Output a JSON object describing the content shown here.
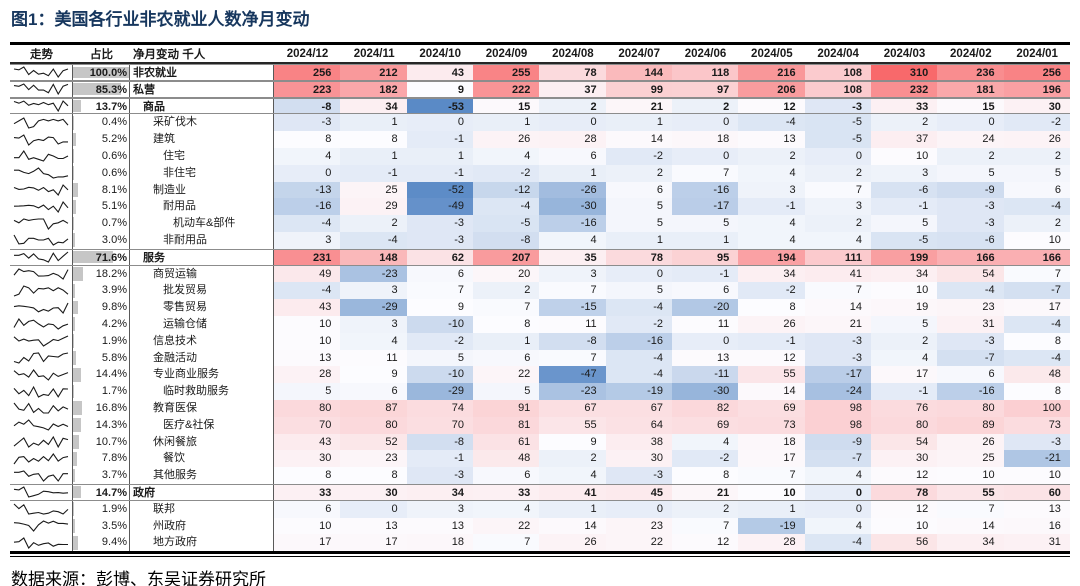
{
  "chart_data": {
    "type": "heatmap",
    "title": "图1：美国各行业非农就业人数净月变动",
    "source": "数据来源：彭博、东吴证券研究所",
    "title_color": "#17375e",
    "columns": {
      "trend": "走势",
      "share": "占比",
      "label": "净月变动 千人"
    },
    "months": [
      "2024/12",
      "2024/11",
      "2024/10",
      "2024/09",
      "2024/08",
      "2024/07",
      "2024/06",
      "2024/05",
      "2024/04",
      "2024/03",
      "2024/02",
      "2024/01"
    ],
    "color_scale": {
      "min": -53,
      "mid": 8,
      "max": 310,
      "min_color": "#5A8AC6",
      "mid_color": "#FCFCFF",
      "max_color": "#F8696B"
    },
    "share_bar_color": "#c6c6c6",
    "rows": [
      {
        "label": "非农就业",
        "share": "100.0%",
        "share_pct": 100.0,
        "indent": 0,
        "bold": true,
        "values": [
          256,
          212,
          43,
          255,
          78,
          144,
          118,
          216,
          108,
          310,
          236,
          256
        ]
      },
      {
        "label": "私营",
        "share": "85.3%",
        "share_pct": 85.3,
        "indent": 0,
        "bold": true,
        "values": [
          223,
          182,
          9,
          222,
          37,
          99,
          97,
          206,
          108,
          232,
          181,
          196
        ]
      },
      {
        "label": "商品",
        "share": "13.7%",
        "share_pct": 13.7,
        "indent": 1,
        "bold": true,
        "values": [
          -8,
          34,
          -53,
          15,
          2,
          21,
          2,
          12,
          -3,
          33,
          15,
          30
        ]
      },
      {
        "label": "采矿伐木",
        "share": "0.4%",
        "share_pct": 0.4,
        "indent": 2,
        "bold": false,
        "values": [
          -3,
          1,
          0,
          1,
          0,
          1,
          0,
          -4,
          -5,
          2,
          0,
          -2
        ]
      },
      {
        "label": "建筑",
        "share": "5.2%",
        "share_pct": 5.2,
        "indent": 2,
        "bold": false,
        "values": [
          8,
          8,
          -1,
          26,
          28,
          14,
          18,
          13,
          -5,
          37,
          24,
          26
        ]
      },
      {
        "label": "住宅",
        "share": "0.6%",
        "share_pct": 0.6,
        "indent": 3,
        "bold": false,
        "values": [
          4,
          1,
          1,
          4,
          6,
          -2,
          0,
          2,
          0,
          10,
          2,
          2
        ]
      },
      {
        "label": "非住宅",
        "share": "0.6%",
        "share_pct": 0.6,
        "indent": 3,
        "bold": false,
        "values": [
          0,
          -1,
          -1,
          -2,
          1,
          2,
          7,
          4,
          2,
          3,
          5,
          5
        ]
      },
      {
        "label": "制造业",
        "share": "8.1%",
        "share_pct": 8.1,
        "indent": 2,
        "bold": false,
        "values": [
          -13,
          25,
          -52,
          -12,
          -26,
          6,
          -16,
          3,
          7,
          -6,
          -9,
          6
        ]
      },
      {
        "label": "耐用品",
        "share": "5.1%",
        "share_pct": 5.1,
        "indent": 3,
        "bold": false,
        "values": [
          -16,
          29,
          -49,
          -4,
          -30,
          5,
          -17,
          -1,
          3,
          -1,
          -3,
          -4
        ]
      },
      {
        "label": "机动车&部件",
        "share": "0.7%",
        "share_pct": 0.7,
        "indent": 4,
        "bold": false,
        "values": [
          -4,
          2,
          -3,
          -5,
          -16,
          5,
          5,
          4,
          2,
          5,
          -3,
          2
        ]
      },
      {
        "label": "非耐用品",
        "share": "3.0%",
        "share_pct": 3.0,
        "indent": 3,
        "bold": false,
        "values": [
          3,
          -4,
          -3,
          -8,
          4,
          1,
          1,
          4,
          4,
          -5,
          -6,
          10
        ]
      },
      {
        "label": "服务",
        "share": "71.6%",
        "share_pct": 71.6,
        "indent": 1,
        "bold": true,
        "values": [
          231,
          148,
          62,
          207,
          35,
          78,
          95,
          194,
          111,
          199,
          166,
          166
        ]
      },
      {
        "label": "商贸运输",
        "share": "18.2%",
        "share_pct": 18.2,
        "indent": 2,
        "bold": false,
        "values": [
          49,
          -23,
          6,
          20,
          3,
          0,
          -1,
          34,
          41,
          34,
          54,
          7
        ]
      },
      {
        "label": "批发贸易",
        "share": "3.9%",
        "share_pct": 3.9,
        "indent": 3,
        "bold": false,
        "values": [
          -4,
          3,
          7,
          2,
          7,
          5,
          6,
          -2,
          7,
          10,
          -4,
          -7
        ]
      },
      {
        "label": "零售贸易",
        "share": "9.8%",
        "share_pct": 9.8,
        "indent": 3,
        "bold": false,
        "values": [
          43,
          -29,
          9,
          7,
          -15,
          -4,
          -20,
          8,
          14,
          19,
          23,
          17
        ]
      },
      {
        "label": "运输仓储",
        "share": "4.2%",
        "share_pct": 4.2,
        "indent": 3,
        "bold": false,
        "values": [
          10,
          3,
          -10,
          8,
          11,
          -2,
          11,
          26,
          21,
          5,
          31,
          -4
        ]
      },
      {
        "label": "信息技术",
        "share": "1.9%",
        "share_pct": 1.9,
        "indent": 2,
        "bold": false,
        "values": [
          10,
          4,
          -2,
          1,
          -8,
          -16,
          0,
          -1,
          -3,
          2,
          -3,
          8
        ]
      },
      {
        "label": "金融活动",
        "share": "5.8%",
        "share_pct": 5.8,
        "indent": 2,
        "bold": false,
        "values": [
          13,
          11,
          5,
          6,
          7,
          -4,
          13,
          12,
          -3,
          4,
          -7,
          -4
        ]
      },
      {
        "label": "专业商业服务",
        "share": "14.4%",
        "share_pct": 14.4,
        "indent": 2,
        "bold": false,
        "values": [
          28,
          9,
          -10,
          22,
          -47,
          -4,
          -11,
          55,
          -17,
          17,
          6,
          48
        ]
      },
      {
        "label": "临时救助服务",
        "share": "1.7%",
        "share_pct": 1.7,
        "indent": 3,
        "bold": false,
        "values": [
          5,
          6,
          -29,
          5,
          -23,
          -19,
          -30,
          14,
          -24,
          -1,
          -16,
          8
        ]
      },
      {
        "label": "教育医保",
        "share": "16.8%",
        "share_pct": 16.8,
        "indent": 2,
        "bold": false,
        "values": [
          80,
          87,
          74,
          91,
          67,
          67,
          82,
          69,
          98,
          76,
          80,
          100
        ]
      },
      {
        "label": "医疗&社保",
        "share": "14.3%",
        "share_pct": 14.3,
        "indent": 3,
        "bold": false,
        "values": [
          70,
          80,
          70,
          81,
          55,
          64,
          69,
          73,
          98,
          80,
          89,
          73
        ]
      },
      {
        "label": "休闲餐旅",
        "share": "10.7%",
        "share_pct": 10.7,
        "indent": 2,
        "bold": false,
        "values": [
          43,
          52,
          -8,
          61,
          9,
          38,
          4,
          18,
          -9,
          54,
          26,
          -3
        ]
      },
      {
        "label": "餐饮",
        "share": "7.8%",
        "share_pct": 7.8,
        "indent": 3,
        "bold": false,
        "values": [
          30,
          23,
          -1,
          48,
          2,
          30,
          -2,
          17,
          -7,
          30,
          25,
          -21
        ]
      },
      {
        "label": "其他服务",
        "share": "3.7%",
        "share_pct": 3.7,
        "indent": 2,
        "bold": false,
        "values": [
          8,
          8,
          -3,
          6,
          4,
          -3,
          8,
          7,
          4,
          12,
          10,
          10
        ]
      },
      {
        "label": "政府",
        "share": "14.7%",
        "share_pct": 14.7,
        "indent": 0,
        "bold": true,
        "values": [
          33,
          30,
          34,
          33,
          41,
          45,
          21,
          10,
          0,
          78,
          55,
          60
        ]
      },
      {
        "label": "联邦",
        "share": "1.9%",
        "share_pct": 1.9,
        "indent": 2,
        "bold": false,
        "values": [
          6,
          0,
          3,
          4,
          1,
          0,
          2,
          1,
          0,
          12,
          7,
          13
        ]
      },
      {
        "label": "州政府",
        "share": "3.5%",
        "share_pct": 3.5,
        "indent": 2,
        "bold": false,
        "values": [
          10,
          13,
          13,
          22,
          14,
          23,
          7,
          -19,
          4,
          10,
          14,
          16
        ]
      },
      {
        "label": "地方政府",
        "share": "9.4%",
        "share_pct": 9.4,
        "indent": 2,
        "bold": false,
        "values": [
          17,
          17,
          18,
          7,
          26,
          22,
          12,
          28,
          -4,
          56,
          34,
          31
        ]
      }
    ]
  }
}
